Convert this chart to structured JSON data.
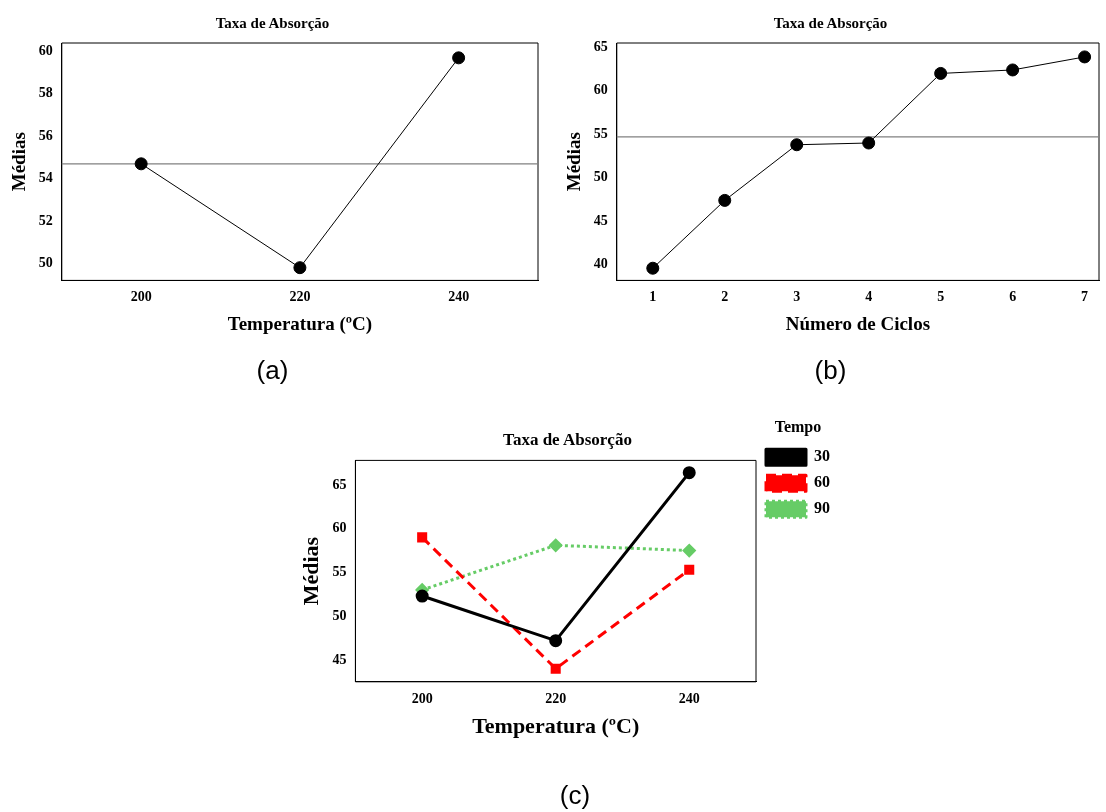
{
  "chart_data": [
    {
      "type": "line",
      "title": "Taxa de Absorção",
      "xlabel": "Temperatura (ºC)",
      "ylabel": "Médias",
      "x": [
        200,
        220,
        240
      ],
      "values": [
        54.7,
        49.8,
        59.7
      ],
      "color": "#000000",
      "xlim": [
        190,
        250
      ],
      "xticks": [
        200,
        220,
        240
      ],
      "ylim": [
        49.2,
        60.4
      ],
      "yticks": [
        50,
        52,
        54,
        56,
        58,
        60
      ],
      "ref_lines": [
        {
          "axis": "y",
          "value": 54.7,
          "color": "#808080"
        }
      ],
      "marker": "circle",
      "line_style": "solid",
      "grid": false,
      "legend": false,
      "annotations": [
        "(a)"
      ]
    },
    {
      "type": "line",
      "title": "Taxa de Absorção",
      "xlabel": "Número de Ciclos",
      "ylabel": "Médias",
      "x": [
        1,
        2,
        3,
        4,
        5,
        6,
        7
      ],
      "values": [
        39.6,
        47.4,
        53.8,
        54.0,
        62.0,
        62.4,
        63.9
      ],
      "color": "#000000",
      "xlim": [
        0.5,
        7.2
      ],
      "xticks": [
        1,
        2,
        3,
        4,
        5,
        6,
        7
      ],
      "ylim": [
        38.2,
        65.5
      ],
      "yticks": [
        40,
        45,
        50,
        55,
        60,
        65
      ],
      "ref_lines": [
        {
          "axis": "y",
          "value": 54.7,
          "color": "#808080"
        }
      ],
      "marker": "circle",
      "line_style": "solid",
      "grid": false,
      "legend": false,
      "annotations": [
        "(b)"
      ]
    },
    {
      "type": "line",
      "title": "Taxa de Absorção",
      "xlabel": "Temperatura (ºC)",
      "ylabel": "Médias",
      "legend_title": "Tempo",
      "x": [
        200,
        220,
        240
      ],
      "series": [
        {
          "name": "30",
          "color": "#000000",
          "values": [
            52.3,
            47.2,
            66.4
          ],
          "marker": "circle",
          "line_style": "solid"
        },
        {
          "name": "60",
          "color": "#ff0000",
          "values": [
            59.0,
            44.0,
            55.3
          ],
          "marker": "square",
          "line_style": "dashed"
        },
        {
          "name": "90",
          "color": "#66cc66",
          "values": [
            53.0,
            58.1,
            57.5
          ],
          "marker": "diamond",
          "line_style": "dotted"
        }
      ],
      "xlim": [
        190,
        250
      ],
      "xticks": [
        200,
        220,
        240
      ],
      "ylim": [
        42.5,
        67.8
      ],
      "yticks": [
        45,
        50,
        55,
        60,
        65
      ],
      "grid": false,
      "legend": "right",
      "annotations": [
        "(c)"
      ]
    }
  ]
}
